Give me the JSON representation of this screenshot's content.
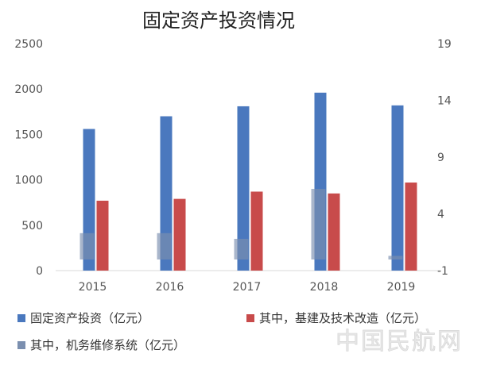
{
  "chart_data": {
    "type": "bar",
    "title": "固定资产投资情况",
    "categories": [
      "2015",
      "2016",
      "2017",
      "2018",
      "2019"
    ],
    "series": [
      {
        "name": "固定资产投资（亿元）",
        "axis": "left",
        "color": "#4a78be",
        "values": [
          1560,
          1700,
          1810,
          1960,
          1820
        ]
      },
      {
        "name": "其中，基建及技术改造（亿元）",
        "axis": "left",
        "color": "#c84b4b",
        "values": [
          770,
          790,
          870,
          850,
          970
        ]
      },
      {
        "name": "其中，机务维修系统（亿元）",
        "axis": "right",
        "color": "#7b8faf",
        "values": [
          2.3,
          2.3,
          1.8,
          6.2,
          0.3
        ]
      }
    ],
    "left_axis": {
      "ylim": [
        0,
        2500
      ],
      "ticks": [
        "0",
        "500",
        "1000",
        "1500",
        "2000",
        "2500"
      ]
    },
    "right_axis": {
      "ylim": [
        -1,
        19
      ],
      "ticks": [
        "-1",
        "4",
        "9",
        "14",
        "19"
      ]
    },
    "grid": false,
    "legend_position": "bottom",
    "watermark": "中国民航网"
  }
}
